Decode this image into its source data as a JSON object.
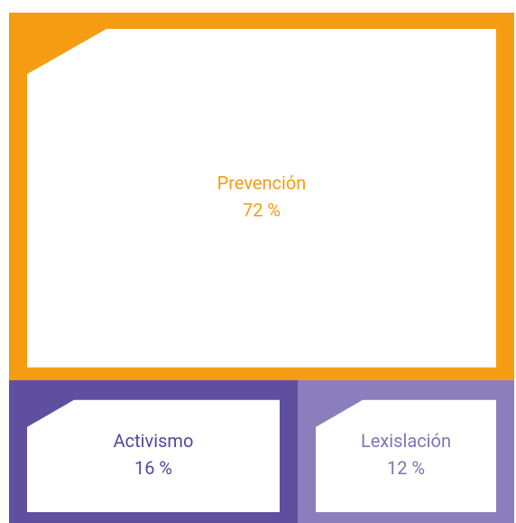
{
  "chart_data": {
    "type": "treemap",
    "categories": [
      "Prevención",
      "Activismo",
      "Lexislación"
    ],
    "values": [
      72,
      16,
      12
    ],
    "value_labels": [
      "72 %",
      "16 %",
      "12 %"
    ],
    "colors": [
      "#f59c12",
      "#5f4f9f",
      "#8a7fbc"
    ],
    "text_colors": [
      "#f59c12",
      "#55479a",
      "#8074b6"
    ]
  }
}
